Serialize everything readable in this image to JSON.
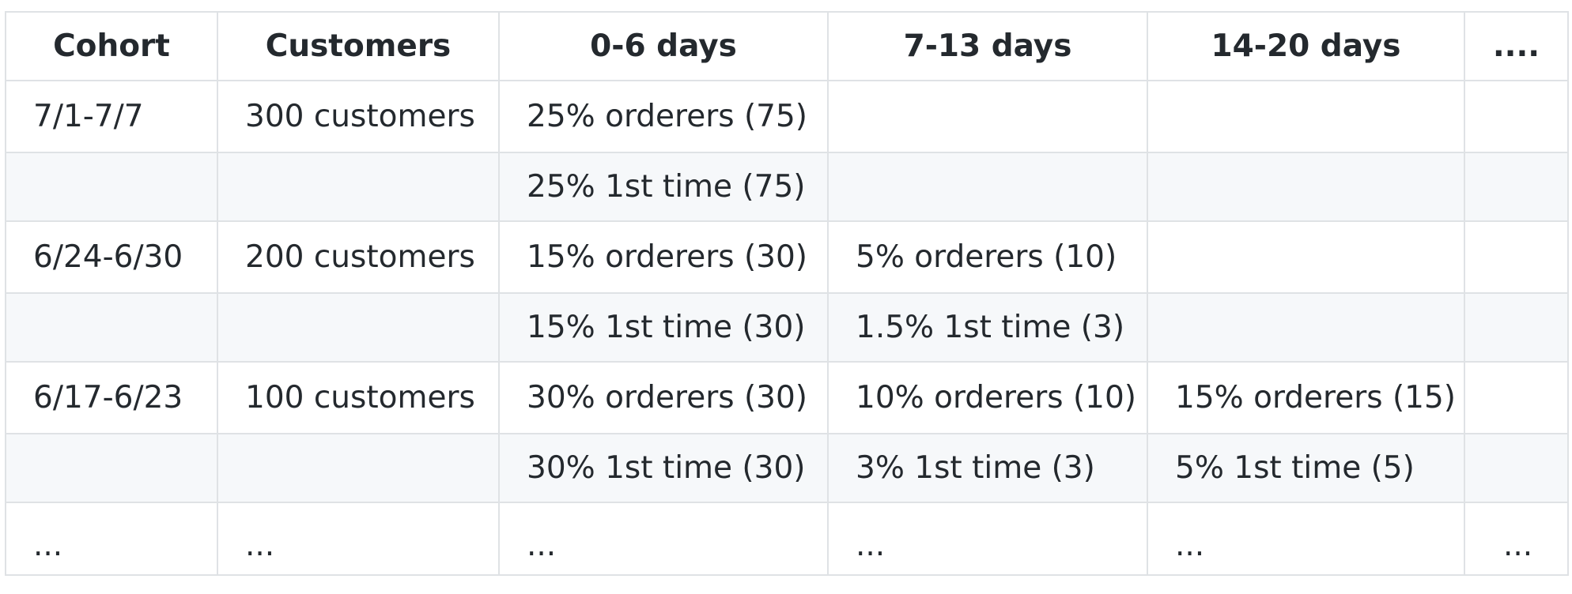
{
  "table": {
    "headers": [
      "Cohort",
      "Customers",
      "0-6 days",
      "7-13 days",
      "14-20 days",
      "...."
    ],
    "rows": [
      [
        "7/1-7/7",
        "300 customers",
        "25% orderers (75)",
        "",
        "",
        ""
      ],
      [
        "",
        "",
        "25% 1st time (75)",
        "",
        "",
        ""
      ],
      [
        "6/24-6/30",
        "200 customers",
        "15% orderers (30)",
        "5% orderers (10)",
        "",
        ""
      ],
      [
        "",
        "",
        "15% 1st time (30)",
        "1.5% 1st time (3)",
        "",
        ""
      ],
      [
        "6/17-6/23",
        "100 customers",
        "30% orderers (30)",
        "10% orderers (10)",
        "15% orderers (15)",
        ""
      ],
      [
        "",
        "",
        "30% 1st time (30)",
        "3% 1st time (3)",
        "5% 1st time (5)",
        ""
      ],
      [
        "...",
        "...",
        "...",
        "...",
        "...",
        "..."
      ]
    ]
  }
}
